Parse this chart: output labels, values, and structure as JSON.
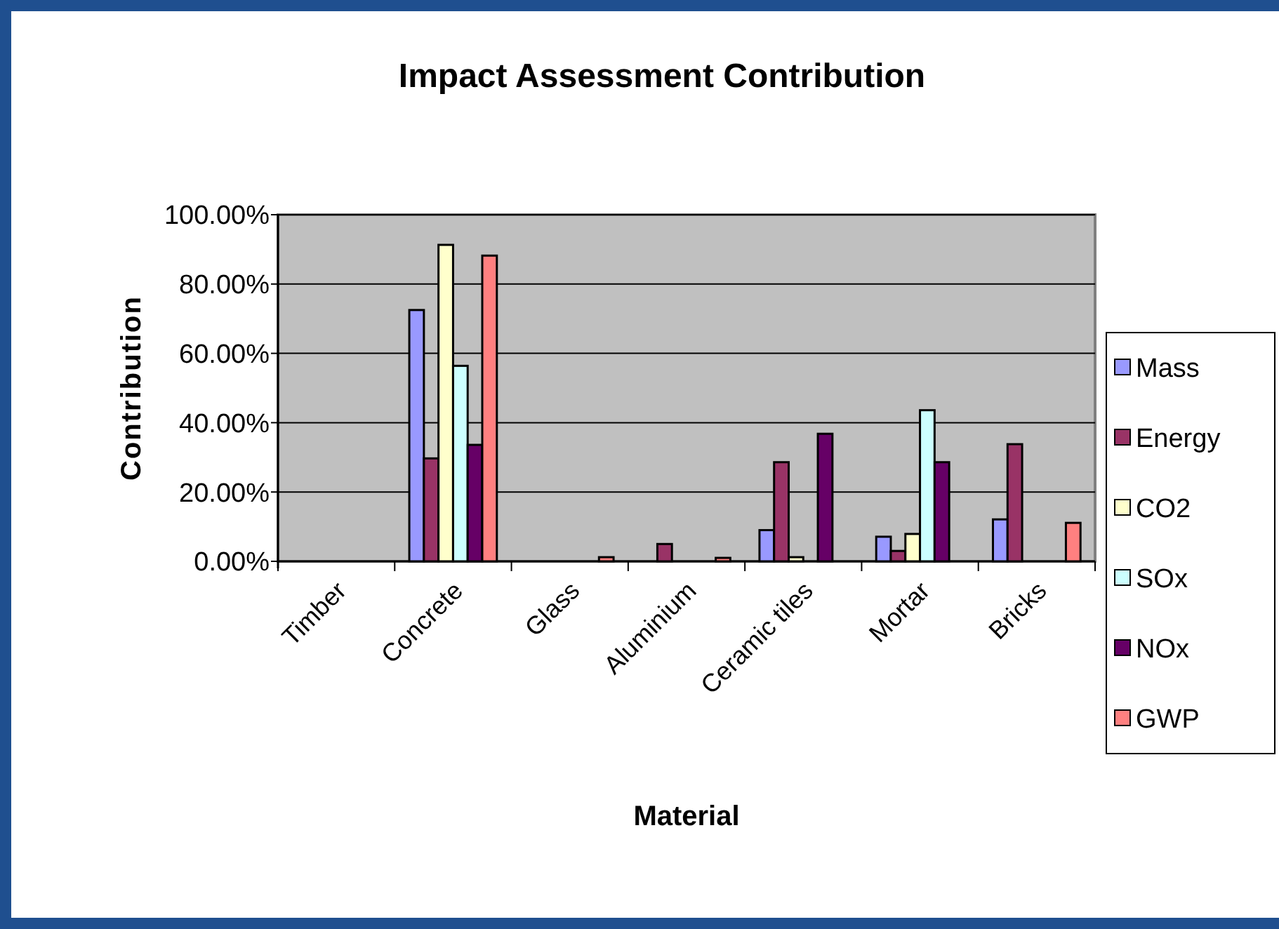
{
  "chart_data": {
    "type": "bar",
    "title": "Impact Assessment Contribution",
    "xlabel": "Material",
    "ylabel": "Contribution",
    "categories": [
      "Timber",
      "Concrete",
      "Glass",
      "Aluminium",
      "Ceramic tiles",
      "Mortar",
      "Bricks"
    ],
    "series": [
      {
        "name": "Mass",
        "color": "#9999ff",
        "values": [
          0,
          0.725,
          0,
          0,
          0.09,
          0.071,
          0.121
        ]
      },
      {
        "name": "Energy",
        "color": "#993366",
        "values": [
          0,
          0.297,
          0,
          0.05,
          0.286,
          0.03,
          0.338
        ]
      },
      {
        "name": "CO2",
        "color": "#ffffcc",
        "values": [
          0,
          0.913,
          0,
          0,
          0.012,
          0.079,
          0
        ]
      },
      {
        "name": "SOx",
        "color": "#ccffff",
        "values": [
          0,
          0.564,
          0,
          0,
          0,
          0.436,
          0
        ]
      },
      {
        "name": "NOx",
        "color": "#660066",
        "values": [
          0,
          0.336,
          0,
          0,
          0.368,
          0.286,
          0
        ]
      },
      {
        "name": "GWP",
        "color": "#ff8080",
        "values": [
          0,
          0.882,
          0.012,
          0.01,
          0,
          0,
          0.111
        ]
      }
    ],
    "ylim": [
      0,
      1
    ],
    "yticks": [
      {
        "value": 0,
        "label": "0.00%"
      },
      {
        "value": 0.2,
        "label": "20.00%"
      },
      {
        "value": 0.4,
        "label": "40.00%"
      },
      {
        "value": 0.6,
        "label": "60.00%"
      },
      {
        "value": 0.8,
        "label": "80.00%"
      },
      {
        "value": 1,
        "label": "100.00%"
      }
    ],
    "grid": "y",
    "legend": "right"
  }
}
